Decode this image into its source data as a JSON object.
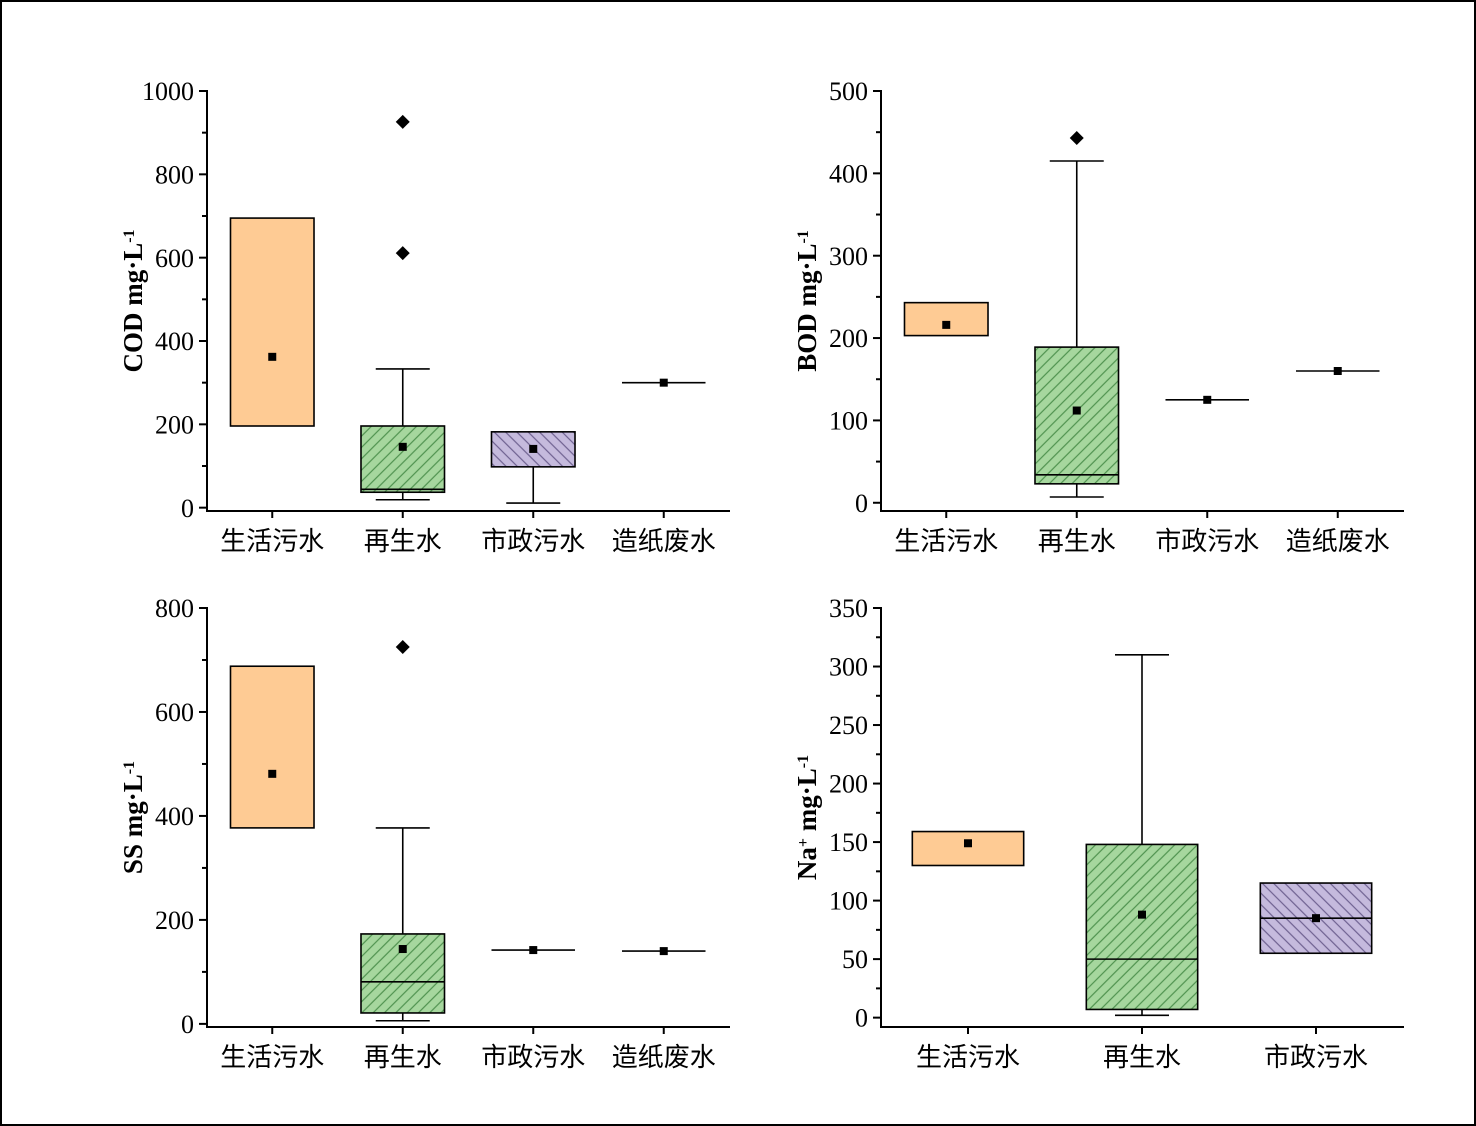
{
  "colors": {
    "marker": "#000000",
    "frame": "#000000"
  },
  "chart_data": [
    {
      "type": "box",
      "title": "",
      "ylabel": [
        {
          "text": "COD mg·L"
        },
        {
          "text": "-1",
          "sup": true
        }
      ],
      "ylim": [
        -8,
        1000
      ],
      "yticks": [
        0,
        200,
        400,
        600,
        800,
        1000
      ],
      "yminor": [
        100,
        300,
        500,
        700,
        900
      ],
      "categories": [
        "生活污水",
        "再生水",
        "市政污水",
        "造纸废水"
      ],
      "boxes": [
        {
          "fill": "#fecb94",
          "hatch": null,
          "hatch_angle": 0,
          "q1": 196,
          "q3": 695,
          "median": null,
          "mean": 362,
          "whisker_low": 196,
          "whisker_high": 695,
          "outliers": []
        },
        {
          "fill": "#a6d79e",
          "hatch": "#4f924f",
          "hatch_angle": 45,
          "q1": 37,
          "q3": 196,
          "median": 44,
          "mean": 146,
          "whisker_low": 19,
          "whisker_high": 333,
          "outliers": [
            611,
            926
          ]
        },
        {
          "fill": "#c5badd",
          "hatch": "#6e6190",
          "hatch_angle": -45,
          "q1": 98,
          "q3": 182,
          "median": null,
          "mean": 141,
          "whisker_low": 11,
          "whisker_high": 182,
          "outliers": []
        },
        {
          "fill": null,
          "hatch": null,
          "hatch_angle": 0,
          "q1": 300,
          "q3": 300,
          "median": 300,
          "mean": 300,
          "whisker_low": 300,
          "whisker_high": 300,
          "outliers": []
        }
      ]
    },
    {
      "type": "box",
      "title": "",
      "ylabel": [
        {
          "text": "BOD mg·L"
        },
        {
          "text": "-1",
          "sup": true
        }
      ],
      "ylim": [
        -10,
        500
      ],
      "yticks": [
        0,
        100,
        200,
        300,
        400,
        500
      ],
      "yminor": [
        50,
        150,
        250,
        350,
        450
      ],
      "categories": [
        "生活污水",
        "再生水",
        "市政污水",
        "造纸废水"
      ],
      "boxes": [
        {
          "fill": "#fecb94",
          "hatch": null,
          "hatch_angle": 0,
          "q1": 203,
          "q3": 243,
          "median": null,
          "mean": 216,
          "whisker_low": 203,
          "whisker_high": 243,
          "outliers": []
        },
        {
          "fill": "#a6d79e",
          "hatch": "#4f924f",
          "hatch_angle": 45,
          "q1": 23,
          "q3": 189,
          "median": 34,
          "mean": 112,
          "whisker_low": 7,
          "whisker_high": 415,
          "outliers": [
            443
          ]
        },
        {
          "fill": "#c5badd",
          "hatch": null,
          "hatch_angle": 0,
          "q1": 125,
          "q3": 125,
          "median": 125,
          "mean": 125,
          "whisker_low": 125,
          "whisker_high": 125,
          "outliers": []
        },
        {
          "fill": null,
          "hatch": null,
          "hatch_angle": 0,
          "q1": 160,
          "q3": 160,
          "median": 160,
          "mean": 160,
          "whisker_low": 160,
          "whisker_high": 160,
          "outliers": []
        }
      ]
    },
    {
      "type": "box",
      "title": "",
      "ylabel": [
        {
          "text": "SS mg·L"
        },
        {
          "text": "-1",
          "sup": true
        }
      ],
      "ylim": [
        -6,
        800
      ],
      "yticks": [
        0,
        200,
        400,
        600,
        800
      ],
      "yminor": [
        100,
        300,
        500,
        700
      ],
      "categories": [
        "生活污水",
        "再生水",
        "市政污水",
        "造纸废水"
      ],
      "boxes": [
        {
          "fill": "#fecb94",
          "hatch": null,
          "hatch_angle": 0,
          "q1": 377,
          "q3": 688,
          "median": null,
          "mean": 481,
          "whisker_low": 377,
          "whisker_high": 688,
          "outliers": []
        },
        {
          "fill": "#a6d79e",
          "hatch": "#4f924f",
          "hatch_angle": 45,
          "q1": 21,
          "q3": 173,
          "median": 81,
          "mean": 144,
          "whisker_low": 6,
          "whisker_high": 377,
          "outliers": [
            725
          ]
        },
        {
          "fill": "#c5badd",
          "hatch": null,
          "hatch_angle": 0,
          "q1": 142,
          "q3": 142,
          "median": 142,
          "mean": 142,
          "whisker_low": 142,
          "whisker_high": 142,
          "outliers": []
        },
        {
          "fill": null,
          "hatch": null,
          "hatch_angle": 0,
          "q1": 140,
          "q3": 140,
          "median": 140,
          "mean": 140,
          "whisker_low": 140,
          "whisker_high": 140,
          "outliers": []
        }
      ]
    },
    {
      "type": "box",
      "title": "",
      "ylabel": [
        {
          "text": "Na"
        },
        {
          "text": "+",
          "sup": true
        },
        {
          "text": " mg·L"
        },
        {
          "text": "-1",
          "sup": true
        }
      ],
      "ylim": [
        -8,
        350
      ],
      "yticks": [
        0,
        50,
        100,
        150,
        200,
        250,
        300,
        350
      ],
      "yminor": [
        25,
        75,
        125,
        175,
        225,
        275,
        325
      ],
      "categories": [
        "生活污水",
        "再生水",
        "市政污水"
      ],
      "boxes": [
        {
          "fill": "#fecb94",
          "hatch": null,
          "hatch_angle": 0,
          "q1": 130,
          "q3": 159,
          "median": null,
          "mean": 149,
          "whisker_low": 130,
          "whisker_high": 159,
          "outliers": []
        },
        {
          "fill": "#a6d79e",
          "hatch": "#4f924f",
          "hatch_angle": 45,
          "q1": 7,
          "q3": 148,
          "median": 50,
          "mean": 88,
          "whisker_low": 2,
          "whisker_high": 310,
          "outliers": []
        },
        {
          "fill": "#c5badd",
          "hatch": "#6e6190",
          "hatch_angle": -45,
          "q1": 55,
          "q3": 115,
          "median": 85,
          "mean": 85,
          "whisker_low": 55,
          "whisker_high": 115,
          "outliers": []
        }
      ]
    }
  ]
}
